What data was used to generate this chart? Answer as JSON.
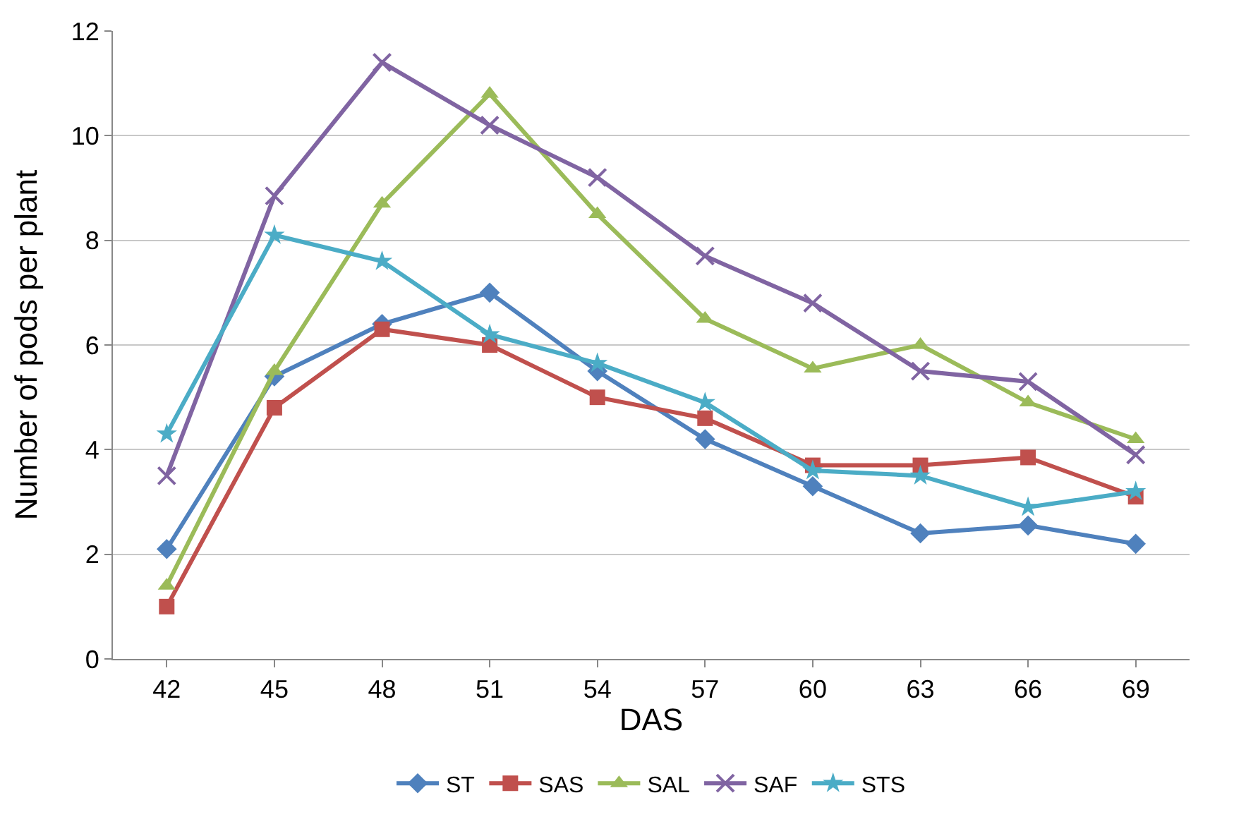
{
  "chart_data": {
    "type": "line",
    "xlabel": "DAS",
    "ylabel": "Number of pods per plant",
    "categories": [
      "42",
      "45",
      "48",
      "51",
      "54",
      "57",
      "60",
      "63",
      "66",
      "69"
    ],
    "ylim": [
      0,
      12
    ],
    "yticks": [
      0,
      2,
      4,
      6,
      8,
      10,
      12
    ],
    "grid": "y",
    "legend": "bottom",
    "series": [
      {
        "name": "ST",
        "color": "#4f81bd",
        "marker": "diamond",
        "values": [
          2.1,
          5.4,
          6.4,
          7.0,
          5.5,
          4.2,
          3.3,
          2.4,
          2.55,
          2.2
        ]
      },
      {
        "name": "SAS",
        "color": "#c0504d",
        "marker": "square",
        "values": [
          1.0,
          4.8,
          6.3,
          6.0,
          5.0,
          4.6,
          3.7,
          3.7,
          3.85,
          3.1
        ]
      },
      {
        "name": "SAL",
        "color": "#9bbb59",
        "marker": "triangle",
        "values": [
          1.4,
          5.5,
          8.7,
          10.8,
          8.5,
          6.5,
          5.55,
          6.0,
          4.9,
          4.2
        ]
      },
      {
        "name": "SAF",
        "color": "#8064a2",
        "marker": "cross",
        "values": [
          3.5,
          8.85,
          11.4,
          10.2,
          9.2,
          7.7,
          6.8,
          5.5,
          5.3,
          3.9
        ]
      },
      {
        "name": "STS",
        "color": "#4bacc6",
        "marker": "star",
        "values": [
          4.3,
          8.1,
          7.6,
          6.2,
          5.65,
          4.9,
          3.6,
          3.5,
          2.9,
          3.2
        ]
      }
    ]
  }
}
